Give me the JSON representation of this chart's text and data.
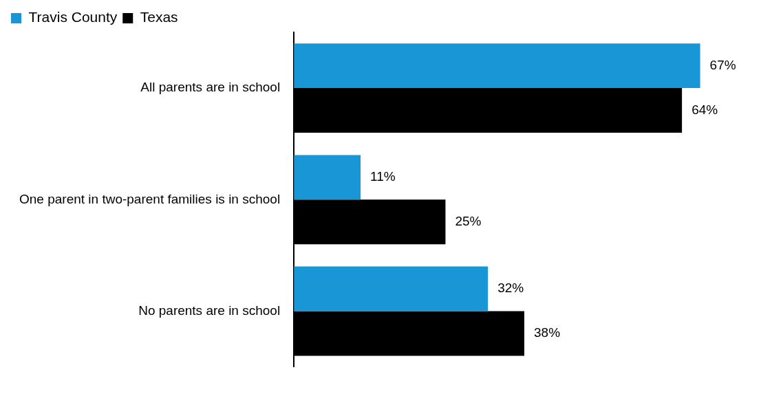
{
  "chart_data": {
    "type": "bar",
    "orientation": "horizontal",
    "categories": [
      "All parents are in school",
      "One parent in two-parent families is in school",
      "No parents are in school"
    ],
    "series": [
      {
        "name": "Travis County",
        "color": "#1996d6",
        "values": [
          67,
          11,
          32
        ],
        "value_labels": [
          "67%",
          "11%",
          "32%"
        ]
      },
      {
        "name": "Texas",
        "color": "#000000",
        "values": [
          64,
          25,
          38
        ],
        "value_labels": [
          "64%",
          "25%",
          "38%"
        ]
      }
    ],
    "tick_labels": "y",
    "legend": "top left"
  }
}
